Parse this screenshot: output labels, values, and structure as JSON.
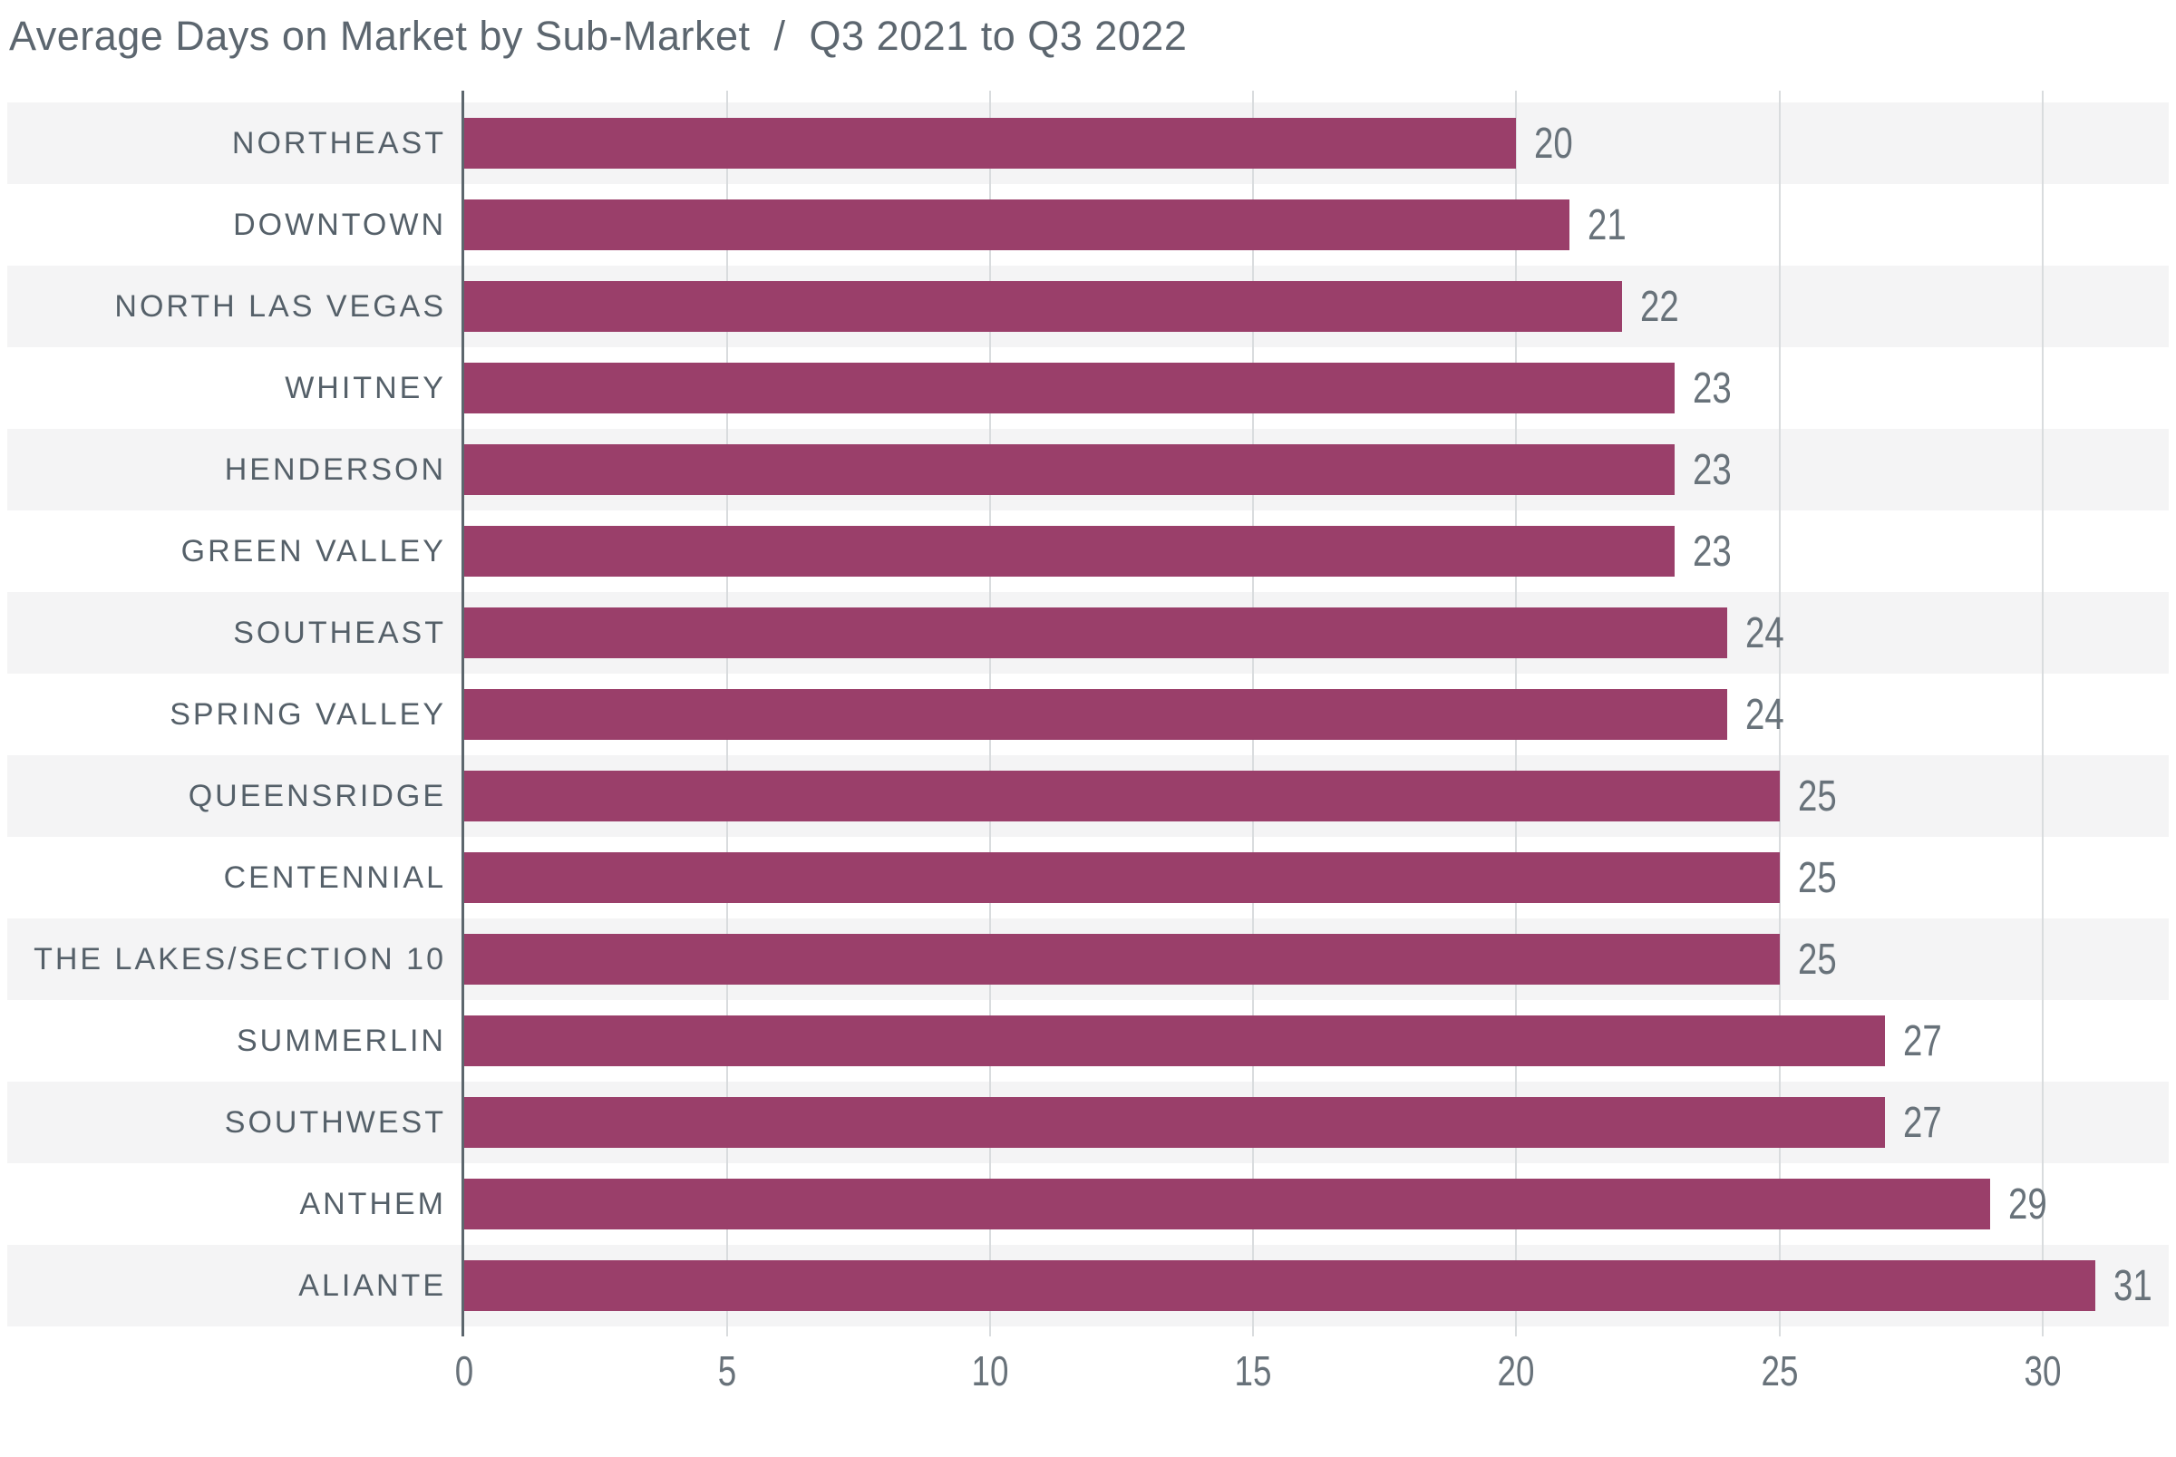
{
  "title": {
    "left": "Average Days on Market by Sub-Market",
    "separator": "/",
    "right": "Q3 2021 to Q3 2022"
  },
  "chart_data": {
    "type": "bar",
    "orientation": "horizontal",
    "title": "Average Days on Market by Sub-Market / Q3 2021 to Q3 2022",
    "xlabel": "",
    "ylabel": "",
    "categories": [
      "NORTHEAST",
      "DOWNTOWN",
      "NORTH LAS VEGAS",
      "WHITNEY",
      "HENDERSON",
      "GREEN VALLEY",
      "SOUTHEAST",
      "SPRING VALLEY",
      "QUEENSRIDGE",
      "CENTENNIAL",
      "THE LAKES/SECTION 10",
      "SUMMERLIN",
      "SOUTHWEST",
      "ANTHEM",
      "ALIANTE"
    ],
    "values": [
      20,
      21,
      22,
      23,
      23,
      23,
      24,
      24,
      25,
      25,
      25,
      27,
      27,
      29,
      31
    ],
    "x_ticks": [
      0,
      5,
      10,
      15,
      20,
      25,
      30
    ],
    "x_tick_labels": [
      "0",
      "5",
      "10",
      "15",
      "20",
      "25",
      "30"
    ],
    "xlim": [
      0,
      32.4
    ],
    "grid": true,
    "legend": false,
    "bar_color": "#9a3f6a",
    "band_color": "#f4f4f5",
    "gridline_color": "#d9dcde",
    "axis_color": "#5c666d",
    "label_color": "#556069",
    "value_color": "#68727a",
    "title_color": "#5c666f"
  }
}
